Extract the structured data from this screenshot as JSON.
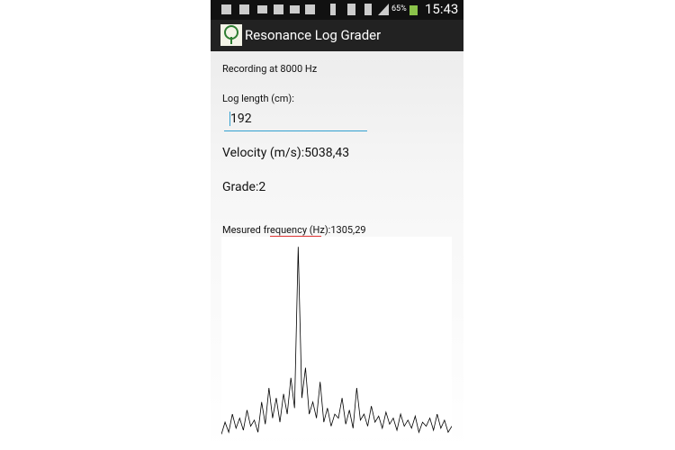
{
  "status_bar": {
    "battery": "65%",
    "time": "15:43"
  },
  "app_bar": {
    "title": "Resonance Log Grader"
  },
  "content": {
    "recording": "Recording at 8000 Hz",
    "log_length_label": "Log length (cm):",
    "log_length_value": "192",
    "velocity": "Velocity (m/s):5038,43",
    "grade": "Grade:2",
    "frequency": "Mesured frequency (Hz):1305,29"
  },
  "spectrum": {
    "type": "line",
    "color": "#000000",
    "ylim": [
      0,
      100
    ],
    "values": [
      2,
      8,
      3,
      12,
      5,
      10,
      4,
      14,
      6,
      9,
      3,
      18,
      7,
      25,
      10,
      20,
      8,
      22,
      12,
      30,
      15,
      95,
      20,
      35,
      12,
      18,
      10,
      28,
      8,
      15,
      6,
      12,
      10,
      20,
      7,
      14,
      5,
      25,
      9,
      12,
      6,
      16,
      8,
      11,
      5,
      13,
      7,
      10,
      4,
      12,
      6,
      9,
      5,
      11,
      3,
      8,
      6,
      10,
      4,
      12,
      5,
      9,
      3,
      6
    ]
  }
}
